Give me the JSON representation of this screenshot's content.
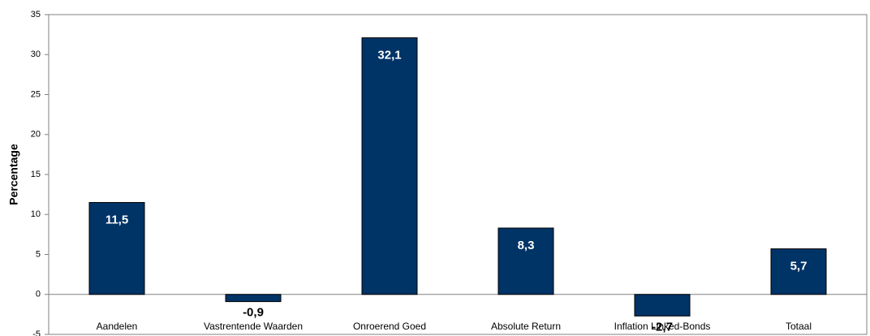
{
  "chart_data": {
    "type": "bar",
    "ylabel": "Percentage",
    "categories": [
      "Aandelen",
      "Vastrentende Waarden",
      "Onroerend Goed",
      "Absolute Return",
      "Inflation Linked-Bonds",
      "Totaal"
    ],
    "values": [
      11.5,
      -0.9,
      32.1,
      8.3,
      -2.7,
      5.7
    ],
    "value_labels": [
      "11,5",
      "-0,9",
      "32,1",
      "8,3",
      "-2,7",
      "5,7"
    ],
    "color": "#003366",
    "ylim": [
      -5,
      35
    ],
    "yticks": [
      -5,
      0,
      5,
      10,
      15,
      20,
      25,
      30,
      35
    ],
    "grid": false
  }
}
